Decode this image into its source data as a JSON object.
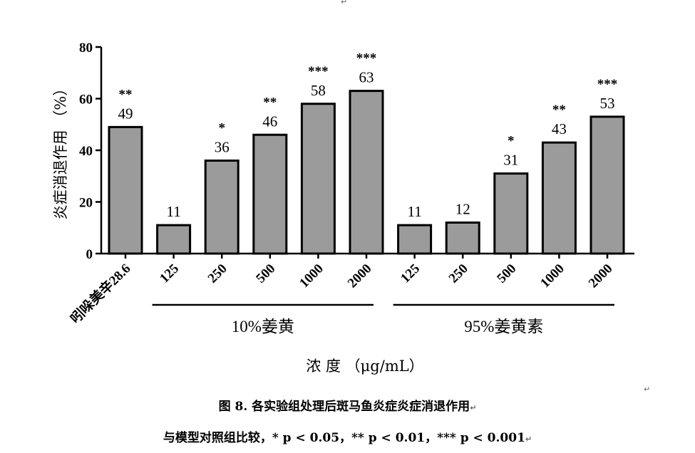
{
  "chart_data": {
    "type": "bar",
    "categories": [
      "吲哚美辛28.6",
      "125",
      "250",
      "500",
      "1000",
      "2000",
      "125",
      "250",
      "500",
      "1000",
      "2000"
    ],
    "values": [
      49,
      11,
      36,
      46,
      58,
      63,
      11,
      12,
      31,
      43,
      53
    ],
    "significance": [
      "**",
      "",
      "*",
      "**",
      "***",
      "***",
      "",
      "",
      "*",
      "**",
      "***"
    ],
    "groups": [
      {
        "label": "10%姜黄",
        "from": 1,
        "to": 5
      },
      {
        "label": "95%姜黄素",
        "from": 6,
        "to": 10
      }
    ],
    "ylabel": "炎症消退作用 （%）",
    "xlabel": "浓 度 （μg/mL）",
    "ylim": [
      0,
      80
    ],
    "yticks": [
      0,
      20,
      40,
      60,
      80
    ],
    "grid": false
  },
  "caption": {
    "line1": "图 8. 各实验组处理后斑马鱼炎症炎症消退作用",
    "line2": "与模型对照组比较，* p < 0.05，** p < 0.01，*** p < 0.001"
  },
  "marks": {
    "paragraph": "↵"
  }
}
